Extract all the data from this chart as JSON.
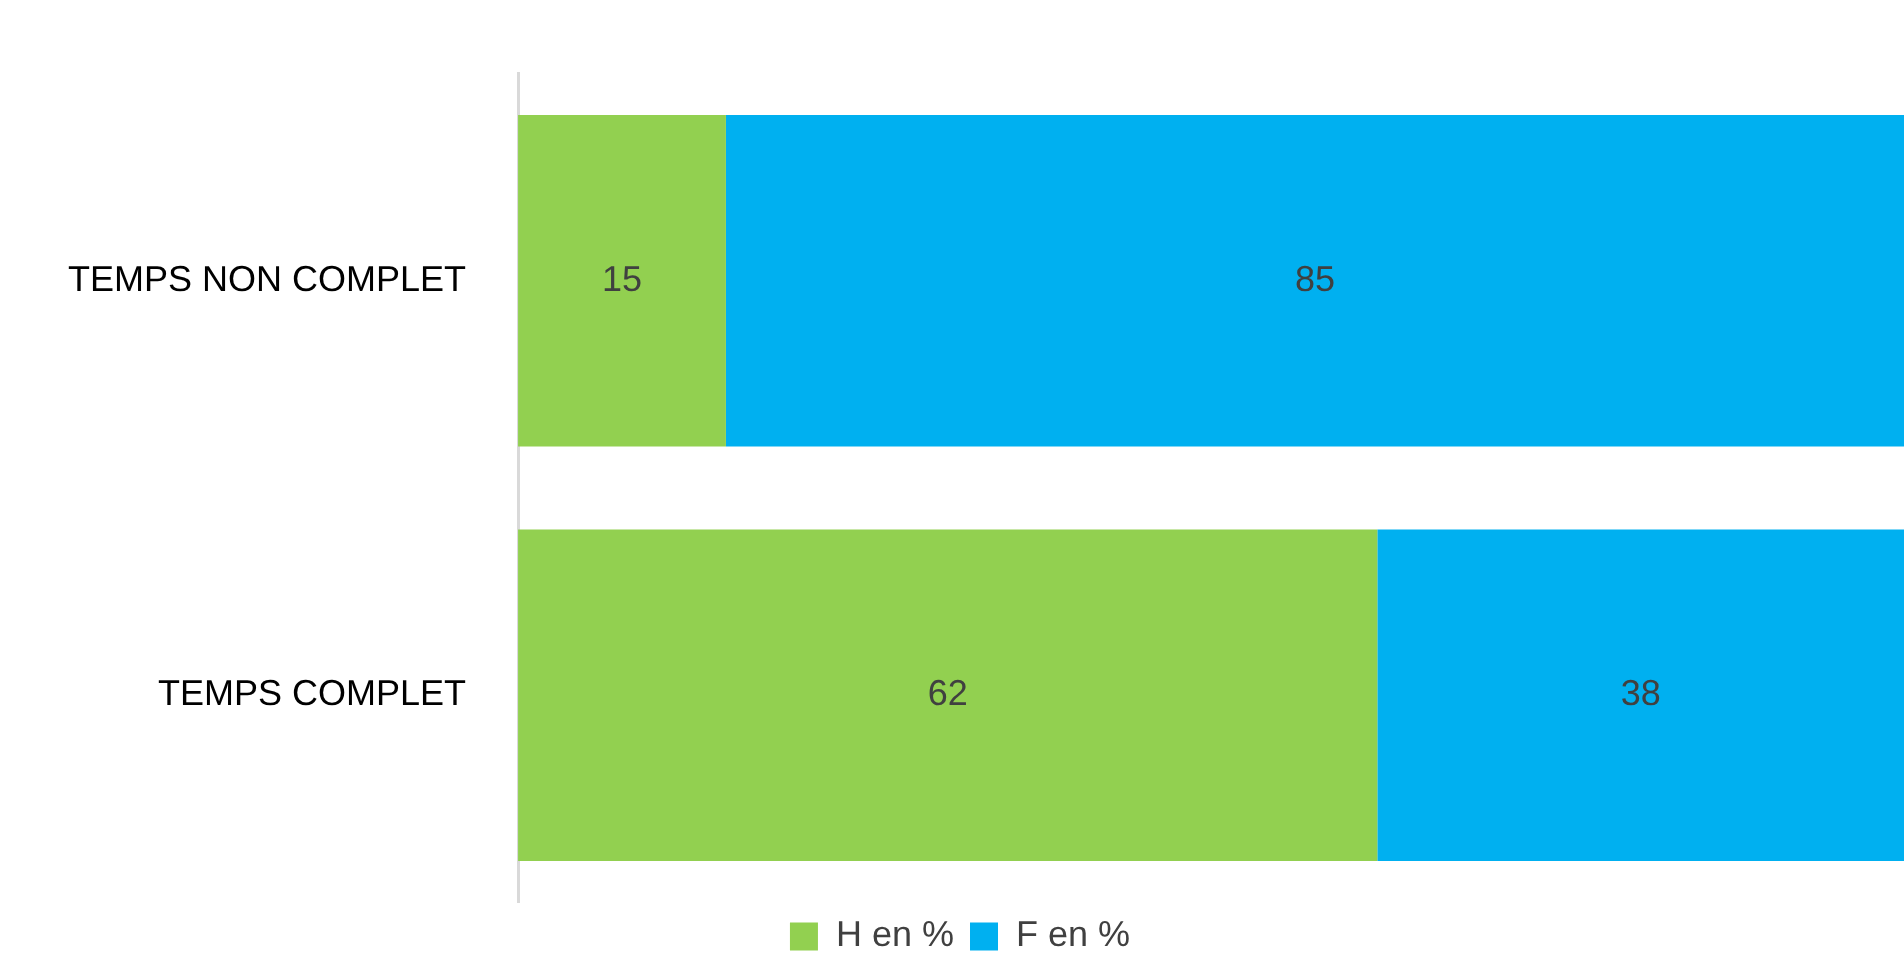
{
  "chart_data": {
    "type": "bar",
    "orientation": "horizontal",
    "stacked": true,
    "categories": [
      "TEMPS NON COMPLET",
      "TEMPS COMPLET"
    ],
    "series": [
      {
        "name": "H en %",
        "color": "#92d050",
        "values": [
          15,
          62
        ]
      },
      {
        "name": "F en %",
        "color": "#00b0f0",
        "values": [
          85,
          38
        ]
      }
    ],
    "data_labels": true,
    "legend": "bottom",
    "grid": false,
    "tick_labels": "y"
  }
}
